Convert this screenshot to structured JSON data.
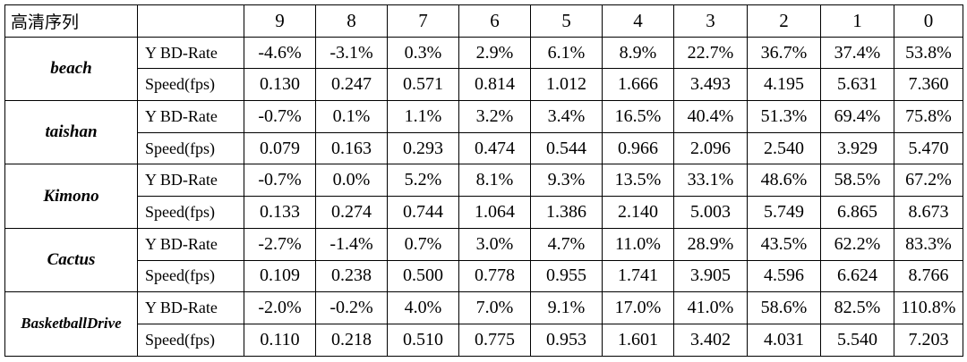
{
  "table": {
    "corner_label": "高清序列",
    "metric_header_label": "",
    "columns": [
      "9",
      "8",
      "7",
      "6",
      "5",
      "4",
      "3",
      "2",
      "1",
      "0"
    ],
    "sequences": [
      {
        "name": "beach",
        "rows": [
          {
            "metric": "Y BD-Rate",
            "values": [
              "-4.6%",
              "-3.1%",
              "0.3%",
              "2.9%",
              "6.1%",
              "8.9%",
              "22.7%",
              "36.7%",
              "37.4%",
              "53.8%"
            ]
          },
          {
            "metric": "Speed(fps)",
            "values": [
              "0.130",
              "0.247",
              "0.571",
              "0.814",
              "1.012",
              "1.666",
              "3.493",
              "4.195",
              "5.631",
              "7.360"
            ]
          }
        ]
      },
      {
        "name": "taishan",
        "rows": [
          {
            "metric": "Y BD-Rate",
            "values": [
              "-0.7%",
              "0.1%",
              "1.1%",
              "3.2%",
              "3.4%",
              "16.5%",
              "40.4%",
              "51.3%",
              "69.4%",
              "75.8%"
            ]
          },
          {
            "metric": "Speed(fps)",
            "values": [
              "0.079",
              "0.163",
              "0.293",
              "0.474",
              "0.544",
              "0.966",
              "2.096",
              "2.540",
              "3.929",
              "5.470"
            ]
          }
        ]
      },
      {
        "name": "Kimono",
        "rows": [
          {
            "metric": "Y BD-Rate",
            "values": [
              "-0.7%",
              "0.0%",
              "5.2%",
              "8.1%",
              "9.3%",
              "13.5%",
              "33.1%",
              "48.6%",
              "58.5%",
              "67.2%"
            ]
          },
          {
            "metric": "Speed(fps)",
            "values": [
              "0.133",
              "0.274",
              "0.744",
              "1.064",
              "1.386",
              "2.140",
              "5.003",
              "5.749",
              "6.865",
              "8.673"
            ]
          }
        ]
      },
      {
        "name": "Cactus",
        "rows": [
          {
            "metric": "Y BD-Rate",
            "values": [
              "-2.7%",
              "-1.4%",
              "0.7%",
              "3.0%",
              "4.7%",
              "11.0%",
              "28.9%",
              "43.5%",
              "62.2%",
              "83.3%"
            ]
          },
          {
            "metric": "Speed(fps)",
            "values": [
              "0.109",
              "0.238",
              "0.500",
              "0.778",
              "0.955",
              "1.741",
              "3.905",
              "4.596",
              "6.624",
              "8.766"
            ]
          }
        ]
      },
      {
        "name": "BasketballDrive",
        "rows": [
          {
            "metric": "Y BD-Rate",
            "values": [
              "-2.0%",
              "-0.2%",
              "4.0%",
              "7.0%",
              "9.1%",
              "17.0%",
              "41.0%",
              "58.6%",
              "82.5%",
              "110.8%"
            ]
          },
          {
            "metric": "Speed(fps)",
            "values": [
              "0.110",
              "0.218",
              "0.510",
              "0.775",
              "0.953",
              "1.601",
              "3.402",
              "4.031",
              "5.540",
              "7.203"
            ]
          }
        ]
      }
    ]
  }
}
